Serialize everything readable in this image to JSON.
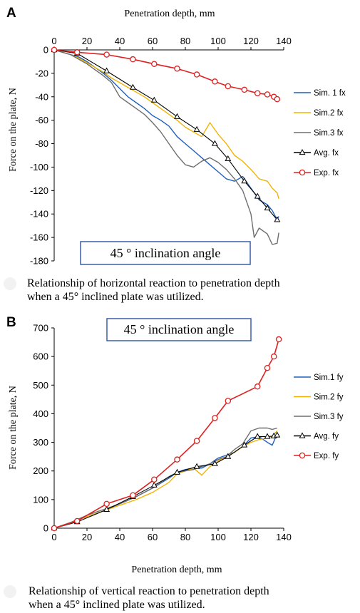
{
  "panels": [
    {
      "letter": "A",
      "note": "45 °  inclination angle",
      "caption_line1": "Relationship of horizontal reaction to penetration depth",
      "caption_line2": "when a 45° inclined plate was utilized."
    },
    {
      "letter": "B",
      "note": "45 °  inclination angle",
      "caption_line1": "Relationship of vertical reaction to penetration depth",
      "caption_line2": "when a 45° inclined plate was utilized."
    }
  ],
  "chart_data": [
    {
      "type": "line",
      "xlabel": "Penetration depth, mm",
      "ylabel": "Force on the plate, N",
      "xlim": [
        0,
        140
      ],
      "ylim": [
        -180,
        0
      ],
      "x_ticks": [
        0,
        20,
        40,
        60,
        80,
        100,
        120,
        140
      ],
      "y_ticks": [
        0,
        -20,
        -40,
        -60,
        -80,
        -100,
        -120,
        -140,
        -160,
        -180
      ],
      "x_axis_position": "top",
      "grid": false,
      "legend_position": "right",
      "colors": {
        "sim1": "#1f5fbf",
        "sim2": "#f2b300",
        "sim3": "#6e6e6e",
        "avg": "#000000",
        "exp": "#e02020"
      },
      "series": [
        {
          "name": "Sim. 1 fx",
          "style": "sim1",
          "marker": "none",
          "x": [
            0,
            5,
            10,
            15,
            20,
            25,
            30,
            35,
            40,
            45,
            50,
            55,
            60,
            65,
            70,
            75,
            80,
            85,
            90,
            95,
            100,
            105,
            110,
            115,
            120,
            125,
            130,
            133,
            136,
            137
          ],
          "y": [
            0,
            -2,
            -4,
            -6,
            -10,
            -15,
            -20,
            -26,
            -33,
            -40,
            -45,
            -50,
            -56,
            -60,
            -65,
            -74,
            -80,
            -86,
            -92,
            -98,
            -104,
            -110,
            -112,
            -108,
            -118,
            -128,
            -132,
            -137,
            -145,
            -142
          ]
        },
        {
          "name": "Sim.2 fx",
          "style": "sim2",
          "marker": "none",
          "x": [
            0,
            5,
            10,
            15,
            20,
            25,
            30,
            35,
            40,
            45,
            50,
            55,
            60,
            65,
            70,
            75,
            80,
            85,
            90,
            95,
            100,
            105,
            110,
            115,
            120,
            125,
            130,
            133,
            136,
            137
          ],
          "y": [
            0,
            -2,
            -4,
            -7,
            -11,
            -15,
            -19,
            -24,
            -28,
            -32,
            -36,
            -40,
            -45,
            -50,
            -55,
            -60,
            -66,
            -70,
            -74,
            -62,
            -72,
            -80,
            -90,
            -95,
            -102,
            -110,
            -112,
            -118,
            -122,
            -127
          ]
        },
        {
          "name": "Sim.3 fx",
          "style": "sim3",
          "marker": "none",
          "x": [
            0,
            5,
            10,
            15,
            20,
            25,
            30,
            35,
            40,
            45,
            50,
            55,
            60,
            65,
            70,
            75,
            80,
            85,
            90,
            95,
            100,
            105,
            110,
            115,
            120,
            122,
            125,
            130,
            133,
            136,
            137
          ],
          "y": [
            0,
            -2,
            -4,
            -8,
            -12,
            -17,
            -22,
            -28,
            -40,
            -45,
            -50,
            -55,
            -62,
            -70,
            -80,
            -90,
            -98,
            -100,
            -95,
            -92,
            -96,
            -102,
            -110,
            -120,
            -140,
            -160,
            -152,
            -157,
            -166,
            -165,
            -156
          ]
        },
        {
          "name": "Avg. fx",
          "style": "avg",
          "marker": "triangle",
          "x": [
            0,
            14,
            32,
            48,
            61,
            75,
            87,
            98,
            106,
            116,
            124,
            130,
            136
          ],
          "y": [
            0,
            -3,
            -18,
            -32,
            -43,
            -57,
            -68,
            -80,
            -93,
            -112,
            -125,
            -135,
            -145
          ]
        },
        {
          "name": "Exp. fx",
          "style": "exp",
          "marker": "circle",
          "x": [
            0,
            14,
            32,
            48,
            61,
            75,
            87,
            98,
            106,
            116,
            124,
            130,
            134,
            136
          ],
          "y": [
            0,
            -2,
            -4,
            -8,
            -12,
            -16,
            -21,
            -27,
            -31,
            -34,
            -37,
            -38,
            -40,
            -42
          ]
        }
      ]
    },
    {
      "type": "line",
      "xlabel": "Penetration depth, mm",
      "ylabel": "Force on the plate, N",
      "xlim": [
        0,
        140
      ],
      "ylim": [
        0,
        700
      ],
      "x_ticks": [
        0,
        20,
        40,
        60,
        80,
        100,
        120,
        140
      ],
      "y_ticks": [
        0,
        100,
        200,
        300,
        400,
        500,
        600,
        700
      ],
      "x_axis_position": "bottom",
      "grid": false,
      "legend_position": "right",
      "colors": {
        "sim1": "#1f5fbf",
        "sim2": "#f2b300",
        "sim3": "#6e6e6e",
        "avg": "#000000",
        "exp": "#e02020"
      },
      "series": [
        {
          "name": "Sim.1 fy",
          "style": "sim1",
          "marker": "none",
          "x": [
            0,
            10,
            20,
            30,
            40,
            50,
            60,
            70,
            75,
            80,
            85,
            90,
            95,
            100,
            105,
            110,
            115,
            120,
            125,
            130,
            133,
            136
          ],
          "y": [
            0,
            20,
            40,
            60,
            85,
            110,
            140,
            175,
            195,
            205,
            210,
            210,
            225,
            245,
            255,
            265,
            285,
            315,
            320,
            300,
            290,
            330
          ]
        },
        {
          "name": "Sim.2 fy",
          "style": "sim2",
          "marker": "none",
          "x": [
            0,
            10,
            20,
            30,
            40,
            50,
            60,
            70,
            75,
            80,
            85,
            90,
            95,
            100,
            105,
            110,
            115,
            120,
            125,
            130,
            133,
            136
          ],
          "y": [
            0,
            20,
            40,
            60,
            80,
            100,
            125,
            160,
            190,
            200,
            210,
            185,
            215,
            235,
            250,
            265,
            285,
            300,
            310,
            315,
            320,
            340
          ]
        },
        {
          "name": "Sim.3 fy",
          "style": "sim3",
          "marker": "none",
          "x": [
            0,
            10,
            20,
            30,
            40,
            50,
            60,
            70,
            75,
            80,
            85,
            90,
            95,
            100,
            105,
            110,
            115,
            120,
            125,
            130,
            133,
            136
          ],
          "y": [
            0,
            20,
            45,
            65,
            85,
            110,
            140,
            180,
            195,
            200,
            205,
            215,
            225,
            240,
            250,
            275,
            295,
            340,
            350,
            350,
            345,
            350
          ]
        },
        {
          "name": "Avg. fy",
          "style": "avg",
          "marker": "triangle",
          "x": [
            0,
            14,
            32,
            48,
            61,
            75,
            87,
            98,
            106,
            116,
            124,
            130,
            134,
            136
          ],
          "y": [
            0,
            22,
            65,
            110,
            150,
            195,
            215,
            225,
            250,
            290,
            320,
            320,
            322,
            325
          ]
        },
        {
          "name": "Exp. fy",
          "style": "exp",
          "marker": "circle",
          "x": [
            0,
            14,
            32,
            48,
            61,
            75,
            87,
            98,
            106,
            124,
            130,
            134,
            137
          ],
          "y": [
            0,
            25,
            85,
            115,
            170,
            240,
            305,
            385,
            445,
            495,
            560,
            600,
            660
          ]
        }
      ]
    }
  ]
}
